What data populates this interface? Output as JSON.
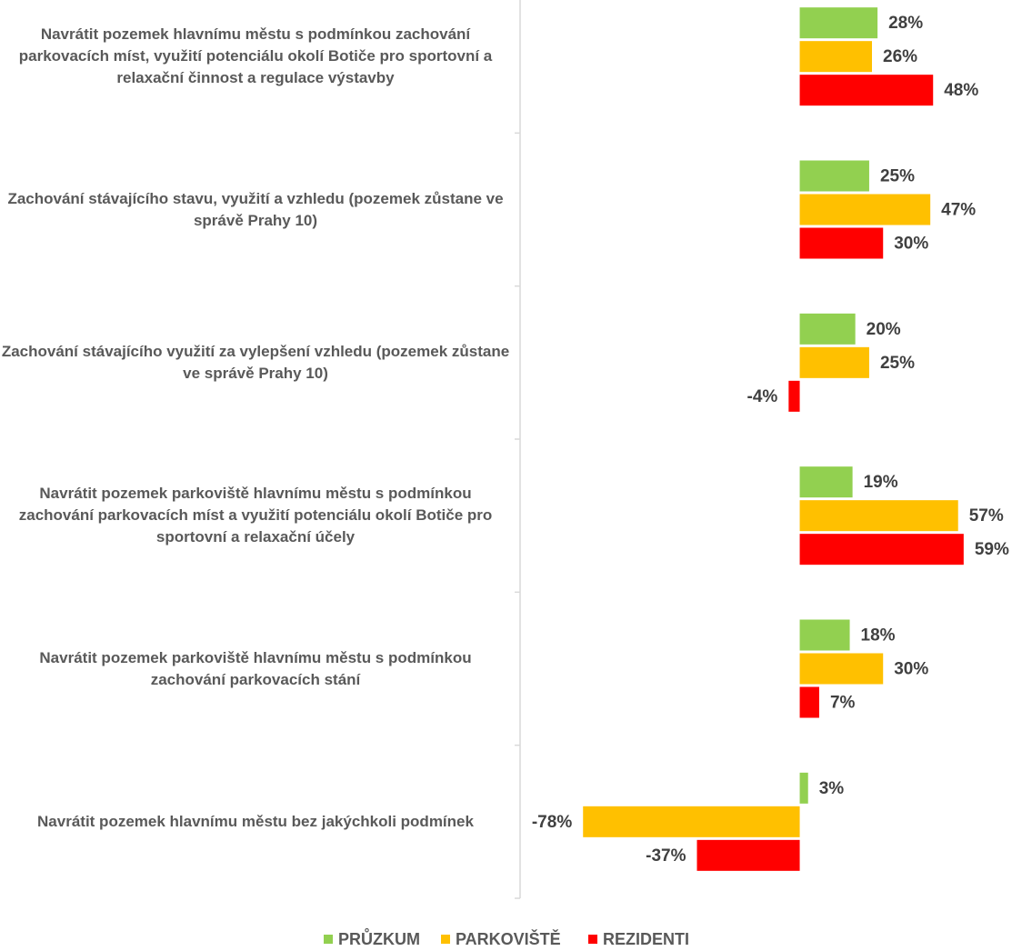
{
  "chart_data": {
    "type": "hbar",
    "categories": [
      "Navrátit pozemek hlavnímu městu s podmínkou zachování parkovacích míst, využití potenciálu okolí Botiče pro sportovní a relaxační činnost a regulace výstavby",
      "Zachování stávajícího stavu, využití a vzhledu (pozemek zůstane ve správě Prahy 10)",
      "Zachování stávajícího využití za vylepšení vzhledu (pozemek zůstane ve správě Prahy 10)",
      "Navrátit pozemek parkoviště hlavnímu městu s podmínkou zachování parkovacích míst a využití potenciálu okolí Botiče pro sportovní a relaxační účely",
      "Navrátit pozemek parkoviště hlavnímu městu s podmínkou zachování parkovacích stání",
      "Navrátit pozemek hlavnímu městu bez jakýchkoli podmínek"
    ],
    "series": [
      {
        "name": "PRŮZKUM",
        "color": "#92d050",
        "values": [
          28,
          25,
          20,
          19,
          18,
          3
        ],
        "value_labels": [
          "28%",
          "25%",
          "20%",
          "19%",
          "18%",
          "3%"
        ]
      },
      {
        "name": "PARKOVIŠTĚ",
        "color": "#ffc000",
        "values": [
          26,
          47,
          25,
          57,
          30,
          -78
        ],
        "value_labels": [
          "26%",
          "47%",
          "25%",
          "57%",
          "30%",
          "-78%"
        ]
      },
      {
        "name": "REZIDENTI",
        "color": "#ff0000",
        "values": [
          48,
          30,
          -4,
          59,
          7,
          -37
        ],
        "value_labels": [
          "48%",
          "30%",
          "-4%",
          "59%",
          "7%",
          "-37%"
        ]
      }
    ],
    "xlim": [
      -100,
      80
    ],
    "legend": "bottom"
  }
}
